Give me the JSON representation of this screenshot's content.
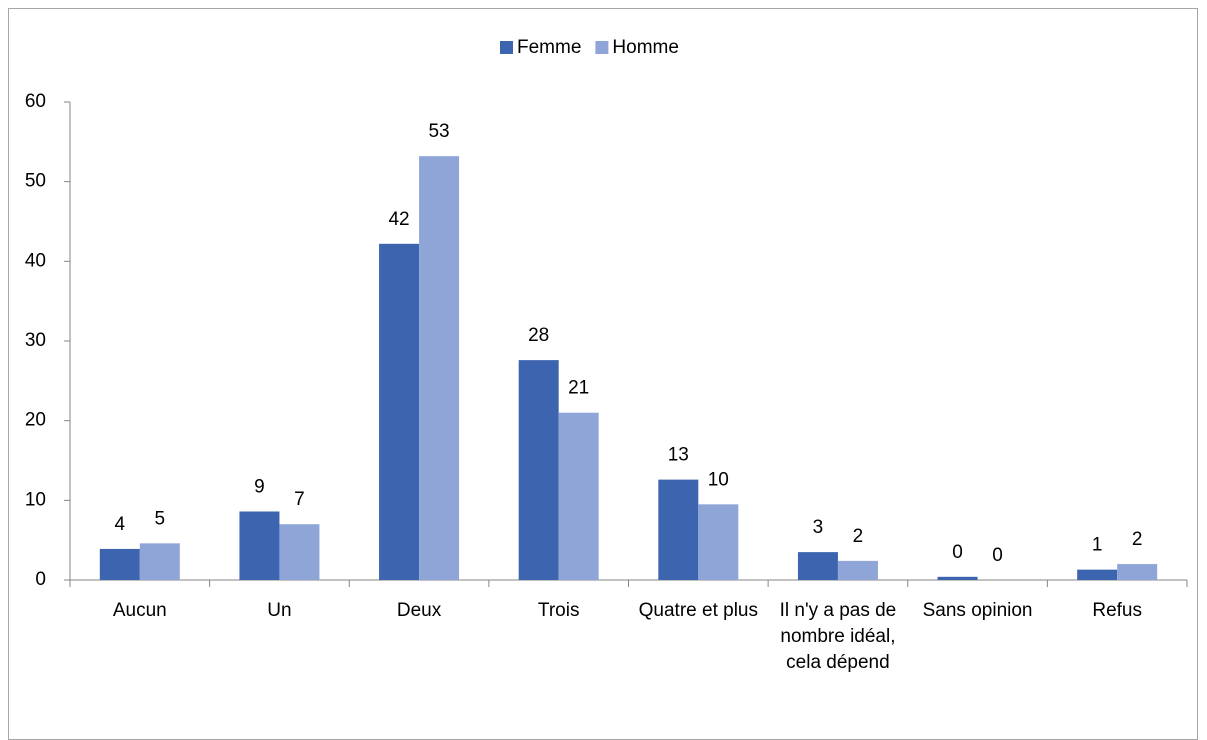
{
  "chart_data": {
    "type": "bar",
    "categories": [
      "Aucun",
      "Un",
      "Deux",
      "Trois",
      "Quatre et plus",
      "Il n'y a pas de nombre idéal, cela dépend",
      "Sans opinion",
      "Refus"
    ],
    "series": [
      {
        "name": "Femme",
        "color": "#3d64ae",
        "values": [
          3.9,
          8.6,
          42.2,
          27.6,
          12.6,
          3.5,
          0.4,
          1.3
        ],
        "value_labels": [
          "4",
          "9",
          "42",
          "28",
          "13",
          "3",
          "0",
          "1"
        ]
      },
      {
        "name": "Homme",
        "color": "#8fa5d7",
        "values": [
          4.6,
          7.0,
          53.2,
          21.0,
          9.5,
          2.4,
          0,
          2.0
        ],
        "value_labels": [
          "5",
          "7",
          "53",
          "21",
          "10",
          "2",
          "0",
          "2"
        ]
      }
    ],
    "ylim": [
      0,
      60
    ],
    "yticks": [
      0,
      10,
      20,
      30,
      40,
      50,
      60
    ],
    "grid": false,
    "legend": "top"
  }
}
